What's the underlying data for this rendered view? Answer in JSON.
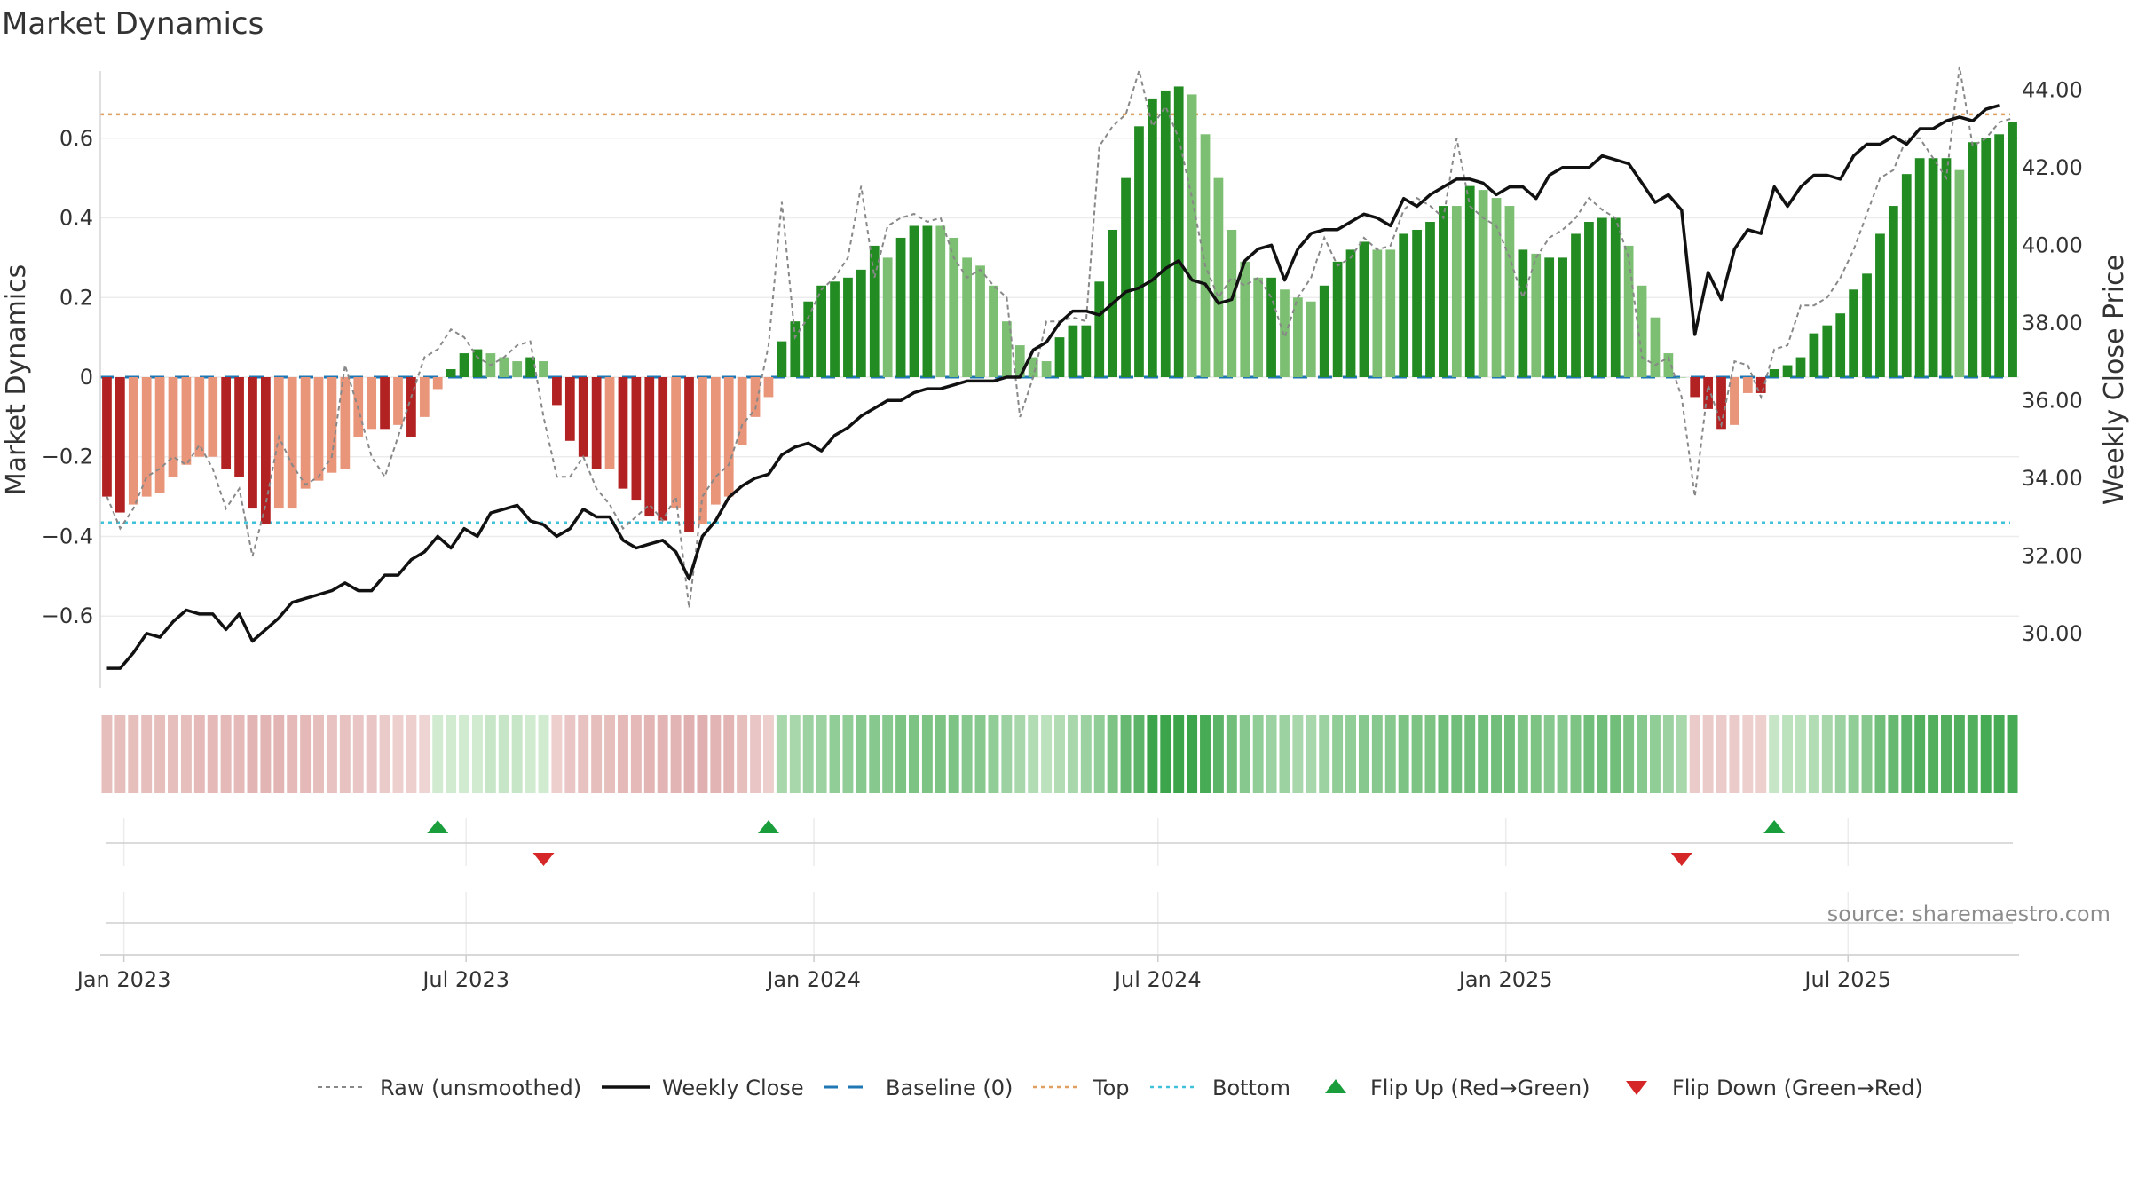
{
  "chart_data": {
    "type": "bar",
    "title": "Market Dynamics",
    "ylabel_left": "Market Dynamics",
    "ylabel_right": "Weekly Close Price",
    "source": "source: sharemaestro.com",
    "left_axis": {
      "ylim": [
        -0.78,
        0.78
      ],
      "ticks": [
        -0.6,
        -0.4,
        -0.2,
        0,
        0.2,
        0.4,
        0.6
      ],
      "tick_labels": [
        "−0.6",
        "−0.4",
        "−0.2",
        "0",
        "0.2",
        "0.4",
        "0.6"
      ]
    },
    "right_axis": {
      "ylim": [
        28.6,
        44.6
      ],
      "ticks": [
        30,
        32,
        34,
        36,
        38,
        40,
        42,
        44
      ],
      "tick_labels": [
        "30.00",
        "32.00",
        "34.00",
        "36.00",
        "38.00",
        "40.00",
        "42.00",
        "44.00"
      ]
    },
    "x_axis": {
      "start": "2022-12-23",
      "tick_labels": [
        "Jan 2023",
        "Jul 2023",
        "Jan 2024",
        "Jul 2024",
        "Jan 2025",
        "Jul 2025"
      ],
      "tick_dates": [
        "2023-01-01",
        "2023-07-01",
        "2024-01-01",
        "2024-07-01",
        "2025-01-01",
        "2025-07-01"
      ]
    },
    "grid": true,
    "reference_lines": {
      "top": 0.66,
      "bottom": -0.365,
      "baseline": 0
    },
    "colors": {
      "strong_up": "#228b22",
      "weak_up": "#7cbf72",
      "strong_down": "#b22222",
      "weak_down": "#e8957a",
      "close": "#111111",
      "raw": "#888888",
      "top": "#e0a060",
      "bottom": "#3fc1d9",
      "baseline": "#1f77b4",
      "flip_up": "#1a9e3c",
      "flip_down": "#d62728"
    },
    "bar_values": [
      -0.3,
      -0.34,
      -0.32,
      -0.3,
      -0.29,
      -0.25,
      -0.22,
      -0.2,
      -0.2,
      -0.23,
      -0.25,
      -0.33,
      -0.37,
      -0.33,
      -0.33,
      -0.28,
      -0.26,
      -0.24,
      -0.23,
      -0.15,
      -0.13,
      -0.13,
      -0.12,
      -0.15,
      -0.1,
      -0.03,
      0.02,
      0.06,
      0.07,
      0.06,
      0.05,
      0.04,
      0.05,
      0.04,
      -0.07,
      -0.16,
      -0.2,
      -0.23,
      -0.23,
      -0.28,
      -0.31,
      -0.35,
      -0.36,
      -0.33,
      -0.39,
      -0.37,
      -0.32,
      -0.3,
      -0.17,
      -0.1,
      -0.05,
      0.09,
      0.14,
      0.19,
      0.23,
      0.24,
      0.25,
      0.27,
      0.33,
      0.3,
      0.35,
      0.38,
      0.38,
      0.38,
      0.35,
      0.3,
      0.28,
      0.23,
      0.14,
      0.08,
      0.05,
      0.04,
      0.1,
      0.13,
      0.13,
      0.24,
      0.37,
      0.5,
      0.63,
      0.7,
      0.72,
      0.73,
      0.71,
      0.61,
      0.5,
      0.37,
      0.29,
      0.25,
      0.25,
      0.22,
      0.2,
      0.19,
      0.23,
      0.29,
      0.32,
      0.34,
      0.32,
      0.32,
      0.36,
      0.37,
      0.39,
      0.43,
      0.43,
      0.48,
      0.47,
      0.45,
      0.43,
      0.32,
      0.31,
      0.3,
      0.3,
      0.36,
      0.39,
      0.4,
      0.4,
      0.33,
      0.23,
      0.15,
      0.06,
      0.0,
      -0.05,
      -0.08,
      -0.13,
      -0.12,
      -0.04,
      -0.04,
      0.02,
      0.03,
      0.05,
      0.11,
      0.13,
      0.16,
      0.22,
      0.26,
      0.36,
      0.43,
      0.51,
      0.55,
      0.55,
      0.55,
      0.52,
      0.59,
      0.6,
      0.61,
      0.64
    ],
    "bar_strength": [
      1,
      1,
      0,
      0,
      0,
      0,
      0,
      0,
      0,
      1,
      1,
      1,
      1,
      0,
      0,
      0,
      0,
      0,
      0,
      0,
      0,
      1,
      0,
      1,
      0,
      0,
      1,
      1,
      1,
      0,
      0,
      0,
      1,
      0,
      1,
      1,
      1,
      1,
      0,
      1,
      1,
      1,
      1,
      0,
      1,
      0,
      0,
      0,
      0,
      0,
      0,
      1,
      1,
      1,
      1,
      1,
      1,
      1,
      1,
      0,
      1,
      1,
      1,
      0,
      0,
      0,
      0,
      0,
      0,
      0,
      0,
      0,
      1,
      1,
      1,
      1,
      1,
      1,
      1,
      1,
      1,
      1,
      0,
      0,
      0,
      0,
      0,
      0,
      1,
      0,
      0,
      0,
      1,
      1,
      1,
      1,
      0,
      0,
      1,
      1,
      1,
      1,
      0,
      1,
      0,
      0,
      0,
      1,
      0,
      1,
      1,
      1,
      1,
      1,
      1,
      0,
      0,
      0,
      0,
      0,
      1,
      1,
      1,
      0,
      0,
      1,
      1,
      1,
      1,
      1,
      1,
      1,
      1,
      1,
      1,
      1,
      1,
      1,
      1,
      1,
      0,
      1,
      1,
      1,
      1
    ],
    "raw_values": [
      -0.3,
      -0.38,
      -0.33,
      -0.25,
      -0.23,
      -0.2,
      -0.22,
      -0.17,
      -0.23,
      -0.33,
      -0.28,
      -0.45,
      -0.32,
      -0.15,
      -0.22,
      -0.27,
      -0.25,
      -0.2,
      0.03,
      -0.08,
      -0.2,
      -0.25,
      -0.15,
      -0.05,
      0.05,
      0.07,
      0.12,
      0.1,
      0.05,
      0.03,
      0.05,
      0.08,
      0.09,
      -0.1,
      -0.25,
      -0.25,
      -0.2,
      -0.28,
      -0.32,
      -0.38,
      -0.35,
      -0.32,
      -0.36,
      -0.3,
      -0.58,
      -0.3,
      -0.25,
      -0.22,
      -0.12,
      -0.08,
      0.08,
      0.44,
      0.1,
      0.15,
      0.22,
      0.25,
      0.3,
      0.48,
      0.25,
      0.38,
      0.4,
      0.41,
      0.39,
      0.4,
      0.3,
      0.25,
      0.27,
      0.23,
      0.2,
      -0.1,
      0.0,
      0.14,
      0.14,
      0.15,
      0.14,
      0.58,
      0.63,
      0.66,
      0.77,
      0.63,
      0.68,
      0.6,
      0.45,
      0.28,
      0.2,
      0.25,
      0.23,
      0.25,
      0.2,
      0.1,
      0.2,
      0.25,
      0.35,
      0.28,
      0.3,
      0.35,
      0.32,
      0.33,
      0.42,
      0.45,
      0.43,
      0.4,
      0.6,
      0.43,
      0.4,
      0.38,
      0.3,
      0.2,
      0.3,
      0.35,
      0.37,
      0.4,
      0.45,
      0.42,
      0.4,
      0.3,
      0.05,
      0.03,
      0.05,
      -0.05,
      -0.3,
      -0.02,
      -0.12,
      0.04,
      0.03,
      -0.05,
      0.07,
      0.08,
      0.18,
      0.18,
      0.2,
      0.25,
      0.32,
      0.41,
      0.5,
      0.52,
      0.6,
      0.6,
      0.55,
      0.5,
      0.78,
      0.58,
      0.6,
      0.64,
      0.65
    ],
    "close_values": [
      29.1,
      29.1,
      29.5,
      30,
      29.9,
      30.3,
      30.6,
      30.5,
      30.5,
      30.1,
      30.5,
      29.8,
      30.1,
      30.4,
      30.8,
      30.9,
      31,
      31.1,
      31.3,
      31.1,
      31.1,
      31.5,
      31.5,
      31.9,
      32.1,
      32.5,
      32.2,
      32.7,
      32.5,
      33.1,
      33.2,
      33.3,
      32.9,
      32.8,
      32.5,
      32.7,
      33.2,
      33,
      33,
      32.4,
      32.2,
      32.3,
      32.4,
      32.1,
      31.4,
      32.5,
      32.9,
      33.5,
      33.8,
      34,
      34.1,
      34.6,
      34.8,
      34.9,
      34.7,
      35.1,
      35.3,
      35.6,
      35.8,
      36,
      36,
      36.2,
      36.3,
      36.3,
      36.4,
      36.5,
      36.5,
      36.5,
      36.6,
      36.6,
      37.3,
      37.5,
      38,
      38.3,
      38.3,
      38.2,
      38.5,
      38.8,
      38.9,
      39.1,
      39.4,
      39.6,
      39.1,
      39,
      38.5,
      38.6,
      39.6,
      39.9,
      40,
      39.1,
      39.9,
      40.3,
      40.4,
      40.4,
      40.6,
      40.8,
      40.7,
      40.5,
      41.2,
      41,
      41.3,
      41.5,
      41.7,
      41.7,
      41.6,
      41.3,
      41.5,
      41.5,
      41.2,
      41.8,
      42.0,
      42.0,
      42.0,
      42.3,
      42.2,
      42.1,
      41.6,
      41.1,
      41.3,
      40.9,
      37.7,
      39.3,
      38.6,
      39.9,
      40.4,
      40.3,
      41.5,
      41.0,
      41.5,
      41.8,
      41.8,
      41.7,
      42.3,
      42.6,
      42.6,
      42.8,
      42.6,
      43.0,
      43.0,
      43.2,
      43.3,
      43.2,
      43.5,
      43.6
    ],
    "regime_values": [
      -0.3,
      -0.3,
      -0.3,
      -0.3,
      -0.3,
      -0.3,
      -0.3,
      -0.35,
      -0.35,
      -0.35,
      -0.35,
      -0.4,
      -0.4,
      -0.4,
      -0.35,
      -0.35,
      -0.3,
      -0.25,
      -0.25,
      -0.2,
      -0.2,
      -0.15,
      -0.1,
      -0.1,
      -0.05,
      0.05,
      0.05,
      0.05,
      0.05,
      0.1,
      0.1,
      0.1,
      0.05,
      0.05,
      -0.1,
      -0.2,
      -0.25,
      -0.3,
      -0.3,
      -0.35,
      -0.35,
      -0.4,
      -0.4,
      -0.4,
      -0.45,
      -0.45,
      -0.4,
      -0.4,
      -0.3,
      -0.2,
      -0.1,
      0.25,
      0.25,
      0.3,
      0.3,
      0.35,
      0.35,
      0.4,
      0.4,
      0.4,
      0.45,
      0.45,
      0.45,
      0.45,
      0.45,
      0.4,
      0.4,
      0.35,
      0.3,
      0.25,
      0.2,
      0.15,
      0.2,
      0.25,
      0.3,
      0.35,
      0.45,
      0.55,
      0.6,
      0.75,
      0.75,
      0.75,
      0.75,
      0.7,
      0.6,
      0.5,
      0.4,
      0.35,
      0.3,
      0.3,
      0.25,
      0.25,
      0.3,
      0.35,
      0.35,
      0.4,
      0.4,
      0.4,
      0.45,
      0.45,
      0.45,
      0.5,
      0.5,
      0.5,
      0.5,
      0.5,
      0.5,
      0.45,
      0.45,
      0.4,
      0.4,
      0.45,
      0.5,
      0.5,
      0.5,
      0.45,
      0.4,
      0.35,
      0.3,
      0.25,
      -0.15,
      -0.15,
      -0.15,
      -0.15,
      -0.1,
      -0.1,
      0.1,
      0.15,
      0.15,
      0.2,
      0.25,
      0.3,
      0.35,
      0.4,
      0.5,
      0.55,
      0.6,
      0.65,
      0.65,
      0.65,
      0.65,
      0.65,
      0.7,
      0.7,
      0.7
    ],
    "flip_up_dates": [
      "2023-06-16",
      "2023-12-08",
      "2025-05-23"
    ],
    "flip_down_dates": [
      "2023-08-11",
      "2025-04-04"
    ],
    "legend": {
      "raw": "Raw (unsmoothed)",
      "close": "Weekly Close",
      "baseline": "Baseline (0)",
      "top": "Top",
      "bottom": "Bottom",
      "flip_up": "Flip Up (Red→Green)",
      "flip_down": "Flip Down (Green→Red)"
    }
  }
}
